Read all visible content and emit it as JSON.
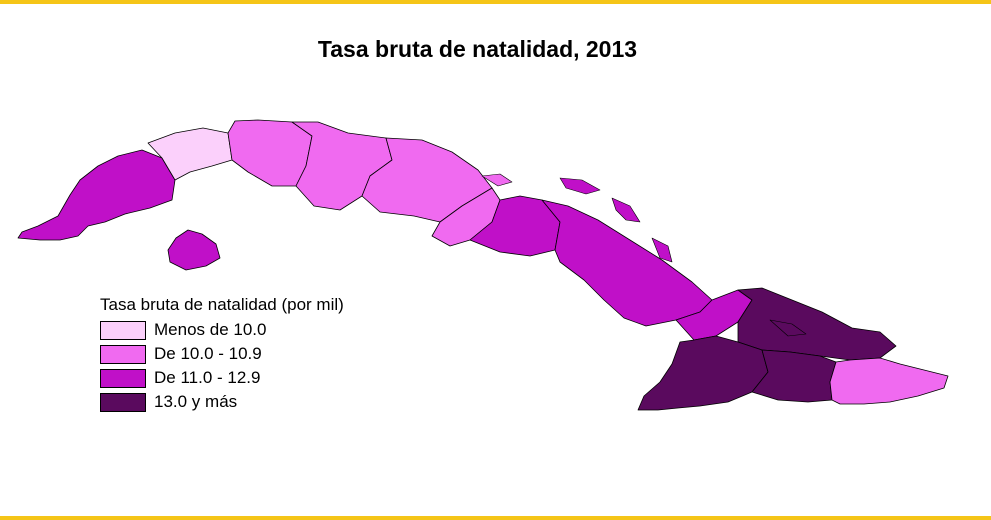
{
  "title": "Tasa bruta de natalidad, 2013",
  "rule_color": "#f5c518",
  "legend": {
    "title": "Tasa bruta de natalidad (por mil)",
    "items": [
      {
        "label": "Menos de 10.0",
        "color": "#fbd0fb"
      },
      {
        "label": "De 10.0 - 10.9",
        "color": "#f06af0"
      },
      {
        "label": "De 11.0 - 12.9",
        "color": "#c010c8"
      },
      {
        "label": "13.0 y más",
        "color": "#5a0a5e"
      }
    ]
  },
  "regions": [
    {
      "name": "pinar-del-rio",
      "class": 2
    },
    {
      "name": "artemisa",
      "class": 0
    },
    {
      "name": "la-habana-mayabeque",
      "class": 1
    },
    {
      "name": "matanzas",
      "class": 1
    },
    {
      "name": "cienfuegos-villa-clara",
      "class": 1
    },
    {
      "name": "sancti-spiritus",
      "class": 1
    },
    {
      "name": "isla-de-la-juventud",
      "class": 2
    },
    {
      "name": "ciego-de-avila",
      "class": 2
    },
    {
      "name": "camaguey",
      "class": 2
    },
    {
      "name": "las-tunas",
      "class": 2
    },
    {
      "name": "holguin",
      "class": 3
    },
    {
      "name": "granma",
      "class": 3
    },
    {
      "name": "santiago-de-cuba",
      "class": 3
    },
    {
      "name": "guantanamo",
      "class": 1
    }
  ]
}
